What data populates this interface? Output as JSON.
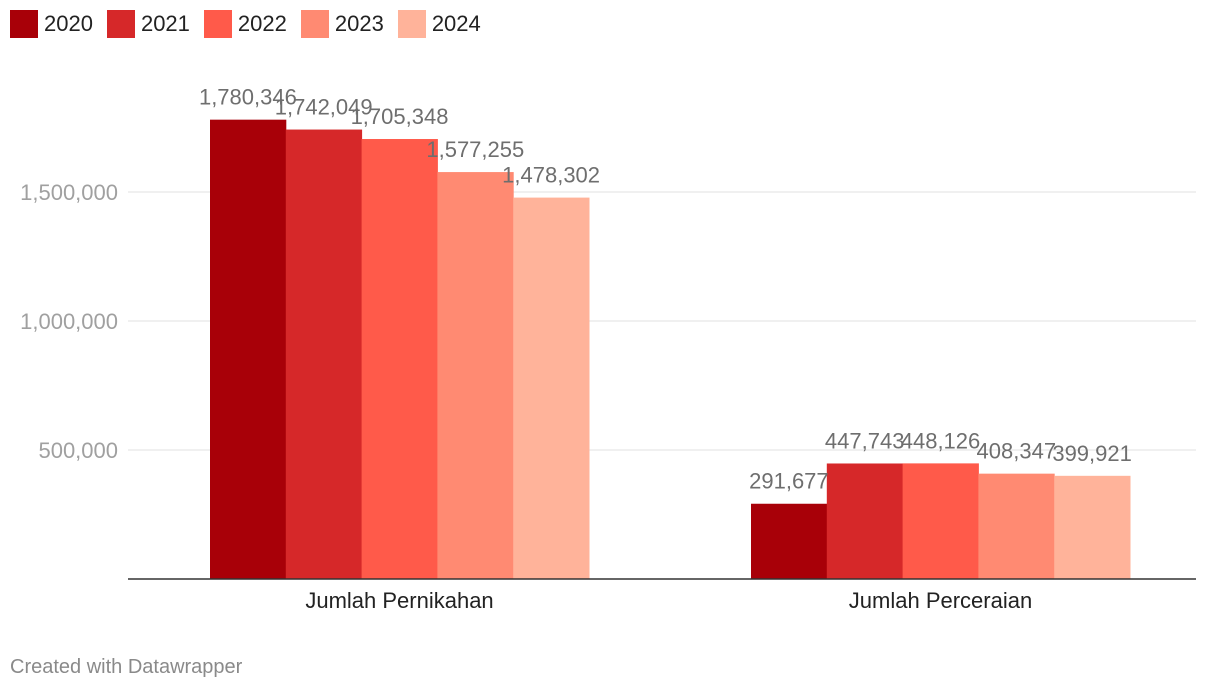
{
  "chart_data": {
    "type": "bar",
    "categories": [
      "Jumlah Pernikahan",
      "Jumlah Perceraian"
    ],
    "series": [
      {
        "name": "2020",
        "color": "#a80008",
        "values": [
          1780346,
          291677
        ],
        "labels": [
          "1,780,346",
          "291,677"
        ]
      },
      {
        "name": "2021",
        "color": "#d62829",
        "values": [
          1742049,
          447743
        ],
        "labels": [
          "1,742,049",
          "447,743"
        ]
      },
      {
        "name": "2022",
        "color": "#ff5a4a",
        "values": [
          1705348,
          448126
        ],
        "labels": [
          "1,705,348",
          "448,126"
        ]
      },
      {
        "name": "2023",
        "color": "#ff8a72",
        "values": [
          1577255,
          408347
        ],
        "labels": [
          "1,577,255",
          "408,347"
        ]
      },
      {
        "name": "2024",
        "color": "#ffb39a",
        "values": [
          1478302,
          399921
        ],
        "labels": [
          "1,478,302",
          "399,921"
        ]
      }
    ],
    "yticks": [
      500000,
      1000000,
      1500000
    ],
    "ytick_labels": [
      "500,000",
      "1,000,000",
      "1,500,000"
    ],
    "ylim": [
      0,
      1900000
    ],
    "grid": true,
    "legend": "top-left"
  },
  "credit": "Created with Datawrapper"
}
